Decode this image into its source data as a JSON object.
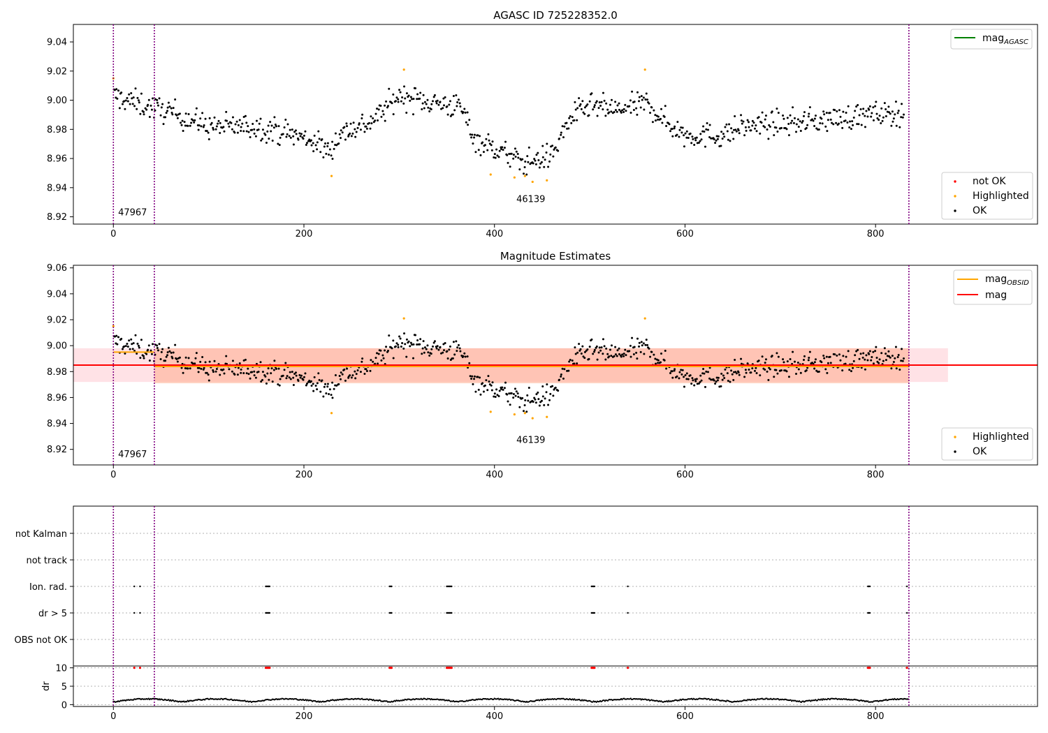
{
  "figure": {
    "title_top": "AGASC ID 725228352.0",
    "title_mid": "Magnitude Estimates"
  },
  "colors": {
    "ok": "#000000",
    "highlighted": "#ffa500",
    "not_ok": "#ff0000",
    "mag_agasc": "#008000",
    "mag_obsid": "#ffa500",
    "mag": "#ff0000",
    "obsid_line": "#800080",
    "band_obsid": "#ffa07a",
    "band_mag": "#ffb6c1"
  },
  "chart_data": [
    {
      "type": "scatter",
      "title": "AGASC ID 725228352.0",
      "xlabel": "",
      "ylabel": "",
      "xlim": [
        -42,
        970
      ],
      "ylim": [
        8.915,
        9.052
      ],
      "xticks": [
        0,
        200,
        400,
        600,
        800
      ],
      "yticks": [
        8.92,
        8.94,
        8.96,
        8.98,
        9.0,
        9.02,
        9.04
      ],
      "ytick_labels": [
        "8.92",
        "8.94",
        "8.96",
        "8.98",
        "9.00",
        "9.02",
        "9.04"
      ],
      "obsid_boundaries": [
        0,
        43,
        835
      ],
      "obsid_labels": [
        {
          "text": "47967",
          "x": 5,
          "y": 8.921
        },
        {
          "text": "46139",
          "x": 423,
          "y": 8.93
        }
      ],
      "legend_lines": [
        {
          "label": "mag",
          "sub": "AGASC",
          "color": "#008000"
        }
      ],
      "legend_lines_position": "upper-right",
      "legend_markers": [
        {
          "label": "not OK",
          "color": "#ff0000"
        },
        {
          "label": "Highlighted",
          "color": "#ffa500"
        },
        {
          "label": "OK",
          "color": "#000000"
        }
      ],
      "legend_markers_position": "lower-right",
      "series": [
        {
          "name": "OK",
          "generator": "mag_series"
        },
        {
          "name": "Highlighted",
          "points": [
            [
              0,
              9.015
            ],
            [
              229,
              8.948
            ],
            [
              305,
              9.021
            ],
            [
              396,
              8.949
            ],
            [
              421,
              8.947
            ],
            [
              432,
              8.948
            ],
            [
              440,
              8.944
            ],
            [
              455,
              8.945
            ],
            [
              558,
              9.021
            ]
          ]
        }
      ]
    },
    {
      "type": "scatter",
      "title": "Magnitude Estimates",
      "xlabel": "",
      "ylabel": "",
      "xlim": [
        -42,
        970
      ],
      "ylim": [
        8.908,
        9.062
      ],
      "xticks": [
        0,
        200,
        400,
        600,
        800
      ],
      "yticks": [
        8.92,
        8.94,
        8.96,
        8.98,
        9.0,
        9.02,
        9.04,
        9.06
      ],
      "ytick_labels": [
        "8.92",
        "8.94",
        "8.96",
        "8.98",
        "9.00",
        "9.02",
        "9.04",
        "9.06"
      ],
      "obsid_boundaries": [
        0,
        43,
        835
      ],
      "obsid_labels": [
        {
          "text": "47967",
          "x": 5,
          "y": 8.914
        },
        {
          "text": "46139",
          "x": 423,
          "y": 8.925
        }
      ],
      "mag_line": {
        "value": 8.985,
        "band": [
          8.972,
          8.998
        ],
        "x_range": [
          -42,
          876
        ]
      },
      "mag_obsid_segments": [
        {
          "x": [
            0,
            43
          ],
          "value": 8.995
        },
        {
          "x": [
            43,
            835
          ],
          "value": 8.984,
          "band": [
            8.971,
            8.998
          ]
        }
      ],
      "legend_lines": [
        {
          "label": "mag",
          "sub": "OBSID",
          "color": "#ffa500"
        },
        {
          "label": "mag",
          "sub": "",
          "color": "#ff0000"
        }
      ],
      "legend_lines_position": "upper-right",
      "legend_markers": [
        {
          "label": "Highlighted",
          "color": "#ffa500"
        },
        {
          "label": "OK",
          "color": "#000000"
        }
      ],
      "legend_markers_position": "lower-right"
    },
    {
      "type": "scatter",
      "title": "",
      "xlim": [
        -42,
        970
      ],
      "xticks": [
        0,
        200,
        400,
        600,
        800
      ],
      "flag_rows": [
        "not Kalman",
        "not track",
        "Ion. rad.",
        "dr > 5",
        "OBS not OK"
      ],
      "flag_points": {
        "Ion. rad.": [
          22,
          28,
          160,
          161,
          162,
          163,
          164,
          290,
          291,
          292,
          350,
          351,
          352,
          353,
          354,
          355,
          502,
          503,
          504,
          505,
          540,
          792,
          793,
          794,
          833
        ],
        "dr > 5": [
          22,
          28,
          160,
          161,
          162,
          163,
          164,
          290,
          291,
          292,
          350,
          351,
          352,
          353,
          354,
          355,
          502,
          503,
          504,
          505,
          540,
          792,
          793,
          794,
          833
        ]
      },
      "dr_ylabel": "dr",
      "dr_ylim": [
        -0.5,
        10.5
      ],
      "dr_yticks": [
        0,
        5,
        10
      ],
      "dr_ytick_labels": [
        "0",
        "5",
        "10"
      ],
      "dr_threshold": 5,
      "dr_high_points": [
        22,
        28,
        160,
        161,
        162,
        163,
        164,
        290,
        291,
        292,
        350,
        351,
        352,
        353,
        354,
        355,
        502,
        503,
        504,
        505,
        540,
        792,
        793,
        794,
        833
      ]
    }
  ]
}
